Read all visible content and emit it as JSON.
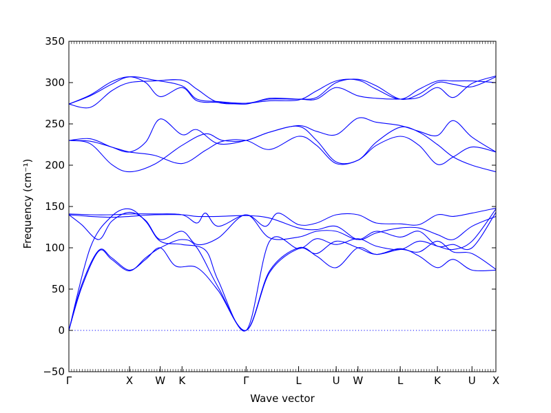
{
  "chart_data": {
    "type": "line",
    "title": "",
    "xlabel": "Wave vector",
    "ylabel": "Frequency (cm⁻¹)",
    "ylim": [
      -50,
      350
    ],
    "y_ticks": [
      -50,
      0,
      50,
      100,
      150,
      200,
      250,
      300,
      350
    ],
    "grid": false,
    "zero_line": {
      "y": 0,
      "style": "dotted",
      "color": "#0000ff"
    },
    "line_color": "#0000ff",
    "x_range": [
      0,
      1
    ],
    "high_symmetry_points": [
      {
        "label": "Γ",
        "x": 0.0
      },
      {
        "label": "X",
        "x": 0.142
      },
      {
        "label": "W",
        "x": 0.214
      },
      {
        "label": "K",
        "x": 0.265
      },
      {
        "label": "Γ",
        "x": 0.415
      },
      {
        "label": "L",
        "x": 0.538
      },
      {
        "label": "U",
        "x": 0.626
      },
      {
        "label": "W",
        "x": 0.677
      },
      {
        "label": "L",
        "x": 0.776
      },
      {
        "label": "K",
        "x": 0.863
      },
      {
        "label": "U",
        "x": 0.944
      },
      {
        "label": "X",
        "x": 1.0
      }
    ],
    "series": [
      {
        "points": [
          [
            0,
            0
          ],
          [
            0.03,
            55
          ],
          [
            0.07,
            97
          ],
          [
            0.1,
            88
          ],
          [
            0.142,
            73
          ],
          [
            0.18,
            86
          ],
          [
            0.214,
            100
          ],
          [
            0.25,
            78
          ],
          [
            0.3,
            76
          ],
          [
            0.35,
            48
          ],
          [
            0.415,
            0
          ],
          [
            0.47,
            72
          ],
          [
            0.538,
            100
          ],
          [
            0.58,
            90
          ],
          [
            0.626,
            76
          ],
          [
            0.677,
            100
          ],
          [
            0.72,
            92
          ],
          [
            0.776,
            99
          ],
          [
            0.82,
            90
          ],
          [
            0.863,
            76
          ],
          [
            0.9,
            86
          ],
          [
            0.944,
            73
          ],
          [
            1.0,
            73
          ]
        ]
      },
      {
        "points": [
          [
            0,
            0
          ],
          [
            0.03,
            52
          ],
          [
            0.07,
            96
          ],
          [
            0.1,
            86
          ],
          [
            0.142,
            72
          ],
          [
            0.18,
            88
          ],
          [
            0.214,
            100
          ],
          [
            0.265,
            110
          ],
          [
            0.3,
            100
          ],
          [
            0.35,
            52
          ],
          [
            0.415,
            0
          ],
          [
            0.47,
            70
          ],
          [
            0.538,
            99
          ],
          [
            0.58,
            93
          ],
          [
            0.626,
            108
          ],
          [
            0.677,
            100
          ],
          [
            0.72,
            92
          ],
          [
            0.776,
            98
          ],
          [
            0.82,
            95
          ],
          [
            0.863,
            108
          ],
          [
            0.9,
            95
          ],
          [
            0.944,
            93
          ],
          [
            1.0,
            74
          ]
        ]
      },
      {
        "points": [
          [
            0,
            0
          ],
          [
            0.05,
            100
          ],
          [
            0.1,
            138
          ],
          [
            0.142,
            147
          ],
          [
            0.18,
            132
          ],
          [
            0.214,
            108
          ],
          [
            0.265,
            104
          ],
          [
            0.32,
            97
          ],
          [
            0.35,
            60
          ],
          [
            0.415,
            0
          ],
          [
            0.47,
            108
          ],
          [
            0.538,
            99
          ],
          [
            0.58,
            111
          ],
          [
            0.626,
            104
          ],
          [
            0.677,
            111
          ],
          [
            0.72,
            102
          ],
          [
            0.776,
            98
          ],
          [
            0.82,
            108
          ],
          [
            0.863,
            102
          ],
          [
            0.9,
            98
          ],
          [
            0.944,
            108
          ],
          [
            1.0,
            147
          ]
        ]
      },
      {
        "points": [
          [
            0,
            140
          ],
          [
            0.03,
            128
          ],
          [
            0.07,
            110
          ],
          [
            0.1,
            132
          ],
          [
            0.142,
            143
          ],
          [
            0.18,
            133
          ],
          [
            0.214,
            110
          ],
          [
            0.265,
            120
          ],
          [
            0.3,
            104
          ],
          [
            0.35,
            112
          ],
          [
            0.415,
            140
          ],
          [
            0.47,
            112
          ],
          [
            0.538,
            113
          ],
          [
            0.58,
            120
          ],
          [
            0.626,
            120
          ],
          [
            0.677,
            110
          ],
          [
            0.72,
            120
          ],
          [
            0.776,
            113
          ],
          [
            0.82,
            120
          ],
          [
            0.863,
            102
          ],
          [
            0.9,
            104
          ],
          [
            0.944,
            100
          ],
          [
            1.0,
            143
          ]
        ]
      },
      {
        "points": [
          [
            0,
            140
          ],
          [
            0.05,
            138
          ],
          [
            0.1,
            137
          ],
          [
            0.142,
            138
          ],
          [
            0.2,
            140
          ],
          [
            0.265,
            140
          ],
          [
            0.3,
            138
          ],
          [
            0.35,
            138
          ],
          [
            0.415,
            139
          ],
          [
            0.47,
            136
          ],
          [
            0.538,
            124
          ],
          [
            0.58,
            122
          ],
          [
            0.626,
            126
          ],
          [
            0.677,
            110
          ],
          [
            0.72,
            118
          ],
          [
            0.776,
            124
          ],
          [
            0.82,
            124
          ],
          [
            0.863,
            116
          ],
          [
            0.9,
            110
          ],
          [
            0.944,
            126
          ],
          [
            1.0,
            138
          ]
        ]
      },
      {
        "points": [
          [
            0,
            141
          ],
          [
            0.05,
            140
          ],
          [
            0.1,
            140
          ],
          [
            0.142,
            141
          ],
          [
            0.2,
            141
          ],
          [
            0.265,
            140
          ],
          [
            0.3,
            130
          ],
          [
            0.32,
            142
          ],
          [
            0.35,
            126
          ],
          [
            0.415,
            140
          ],
          [
            0.46,
            126
          ],
          [
            0.49,
            142
          ],
          [
            0.538,
            128
          ],
          [
            0.58,
            130
          ],
          [
            0.626,
            140
          ],
          [
            0.677,
            140
          ],
          [
            0.72,
            130
          ],
          [
            0.776,
            129
          ],
          [
            0.82,
            128
          ],
          [
            0.863,
            140
          ],
          [
            0.9,
            138
          ],
          [
            0.944,
            142
          ],
          [
            1.0,
            148
          ]
        ]
      },
      {
        "points": [
          [
            0,
            230
          ],
          [
            0.05,
            229
          ],
          [
            0.1,
            222
          ],
          [
            0.142,
            216
          ],
          [
            0.2,
            212
          ],
          [
            0.265,
            202
          ],
          [
            0.32,
            218
          ],
          [
            0.36,
            229
          ],
          [
            0.415,
            230
          ],
          [
            0.47,
            219
          ],
          [
            0.538,
            235
          ],
          [
            0.58,
            224
          ],
          [
            0.626,
            202
          ],
          [
            0.677,
            206
          ],
          [
            0.72,
            224
          ],
          [
            0.776,
            235
          ],
          [
            0.82,
            224
          ],
          [
            0.863,
            201
          ],
          [
            0.9,
            210
          ],
          [
            0.944,
            222
          ],
          [
            1.0,
            216
          ]
        ]
      },
      {
        "points": [
          [
            0,
            230
          ],
          [
            0.05,
            226
          ],
          [
            0.1,
            201
          ],
          [
            0.142,
            192
          ],
          [
            0.2,
            201
          ],
          [
            0.265,
            224
          ],
          [
            0.32,
            238
          ],
          [
            0.36,
            230
          ],
          [
            0.415,
            230
          ],
          [
            0.47,
            240
          ],
          [
            0.538,
            247
          ],
          [
            0.58,
            230
          ],
          [
            0.626,
            204
          ],
          [
            0.677,
            206
          ],
          [
            0.72,
            228
          ],
          [
            0.776,
            246
          ],
          [
            0.82,
            240
          ],
          [
            0.863,
            225
          ],
          [
            0.9,
            210
          ],
          [
            0.944,
            200
          ],
          [
            1.0,
            192
          ]
        ]
      },
      {
        "points": [
          [
            0,
            230
          ],
          [
            0.05,
            232
          ],
          [
            0.1,
            222
          ],
          [
            0.142,
            216
          ],
          [
            0.18,
            228
          ],
          [
            0.214,
            256
          ],
          [
            0.265,
            237
          ],
          [
            0.3,
            243
          ],
          [
            0.35,
            226
          ],
          [
            0.415,
            230
          ],
          [
            0.47,
            240
          ],
          [
            0.538,
            248
          ],
          [
            0.58,
            241
          ],
          [
            0.626,
            237
          ],
          [
            0.677,
            257
          ],
          [
            0.72,
            252
          ],
          [
            0.776,
            248
          ],
          [
            0.82,
            241
          ],
          [
            0.863,
            236
          ],
          [
            0.9,
            254
          ],
          [
            0.944,
            234
          ],
          [
            1.0,
            216
          ]
        ]
      },
      {
        "points": [
          [
            0,
            274
          ],
          [
            0.05,
            270
          ],
          [
            0.1,
            290
          ],
          [
            0.142,
            300
          ],
          [
            0.2,
            302
          ],
          [
            0.265,
            303
          ],
          [
            0.3,
            292
          ],
          [
            0.35,
            276
          ],
          [
            0.415,
            275
          ],
          [
            0.47,
            278
          ],
          [
            0.538,
            279
          ],
          [
            0.58,
            290
          ],
          [
            0.626,
            302
          ],
          [
            0.677,
            303
          ],
          [
            0.72,
            292
          ],
          [
            0.776,
            280
          ],
          [
            0.82,
            292
          ],
          [
            0.863,
            302
          ],
          [
            0.9,
            302
          ],
          [
            0.944,
            302
          ],
          [
            1.0,
            300
          ]
        ]
      },
      {
        "points": [
          [
            0,
            274
          ],
          [
            0.05,
            284
          ],
          [
            0.1,
            298
          ],
          [
            0.142,
            307
          ],
          [
            0.2,
            303
          ],
          [
            0.265,
            296
          ],
          [
            0.3,
            280
          ],
          [
            0.35,
            277
          ],
          [
            0.415,
            275
          ],
          [
            0.47,
            280
          ],
          [
            0.538,
            280
          ],
          [
            0.58,
            282
          ],
          [
            0.626,
            300
          ],
          [
            0.677,
            304
          ],
          [
            0.72,
            296
          ],
          [
            0.776,
            280
          ],
          [
            0.82,
            286
          ],
          [
            0.863,
            300
          ],
          [
            0.9,
            298
          ],
          [
            0.944,
            295
          ],
          [
            1.0,
            307
          ]
        ]
      },
      {
        "points": [
          [
            0,
            274
          ],
          [
            0.05,
            285
          ],
          [
            0.1,
            301
          ],
          [
            0.142,
            307
          ],
          [
            0.18,
            300
          ],
          [
            0.214,
            283
          ],
          [
            0.265,
            294
          ],
          [
            0.3,
            278
          ],
          [
            0.35,
            276
          ],
          [
            0.415,
            274
          ],
          [
            0.47,
            281
          ],
          [
            0.538,
            280
          ],
          [
            0.58,
            280
          ],
          [
            0.626,
            294
          ],
          [
            0.677,
            284
          ],
          [
            0.72,
            281
          ],
          [
            0.776,
            280
          ],
          [
            0.82,
            282
          ],
          [
            0.863,
            294
          ],
          [
            0.9,
            282
          ],
          [
            0.944,
            299
          ],
          [
            1.0,
            308
          ]
        ]
      }
    ]
  }
}
